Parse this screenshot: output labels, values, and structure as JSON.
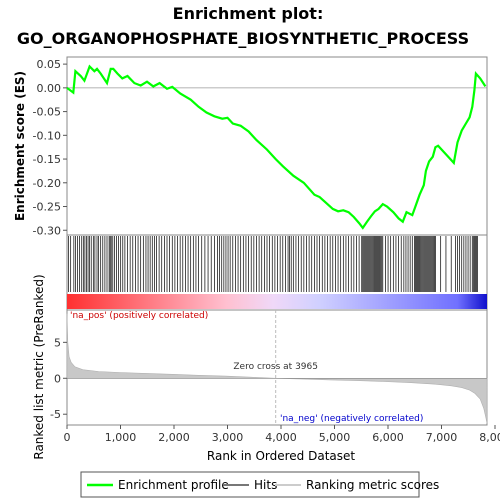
{
  "chart_data": {
    "type": "line",
    "title": "Enrichment plot:",
    "subtitle": "GO_ORGANOPHOSPHATE_BIOSYNTHETIC_PROCESS",
    "xlabel": "Rank in Ordered Dataset",
    "ylabel_top": "Enrichment score (ES)",
    "ylabel_bottom": "Ranked list metric (PreRanked)",
    "xlim": [
      0,
      8000
    ],
    "x_ticks": [
      "0",
      "1,000",
      "2,000",
      "3,000",
      "4,000",
      "5,000",
      "6,000",
      "7,000",
      "8,000"
    ],
    "x_tick_values": [
      0,
      1000,
      2000,
      3000,
      4000,
      5000,
      6000,
      7000,
      8000
    ],
    "es_ylim": [
      -0.31,
      0.065
    ],
    "es_ticks": [
      "0.05",
      "0.00",
      "-0.05",
      "-0.10",
      "-0.15",
      "-0.20",
      "-0.25",
      "-0.30"
    ],
    "es_tick_values": [
      0.05,
      0.0,
      -0.05,
      -0.1,
      -0.15,
      -0.2,
      -0.25,
      -0.3
    ],
    "metric_ylim": [
      -6.5,
      9.5
    ],
    "metric_ticks": [
      "5",
      "0",
      "-5"
    ],
    "metric_tick_values": [
      5,
      0,
      -5
    ],
    "enrichment_profile": {
      "name": "Enrichment profile",
      "color": "#00ff00",
      "points": [
        [
          0,
          0.0
        ],
        [
          120,
          -0.01
        ],
        [
          160,
          0.035
        ],
        [
          260,
          0.025
        ],
        [
          330,
          0.015
        ],
        [
          430,
          0.045
        ],
        [
          520,
          0.035
        ],
        [
          570,
          0.04
        ],
        [
          640,
          0.03
        ],
        [
          760,
          0.01
        ],
        [
          830,
          0.04
        ],
        [
          880,
          0.04
        ],
        [
          960,
          0.03
        ],
        [
          1050,
          0.02
        ],
        [
          1150,
          0.025
        ],
        [
          1280,
          0.01
        ],
        [
          1400,
          0.005
        ],
        [
          1520,
          0.013
        ],
        [
          1640,
          0.003
        ],
        [
          1760,
          0.01
        ],
        [
          1900,
          -0.002
        ],
        [
          2000,
          0.002
        ],
        [
          2150,
          -0.012
        ],
        [
          2350,
          -0.025
        ],
        [
          2500,
          -0.04
        ],
        [
          2650,
          -0.052
        ],
        [
          2800,
          -0.06
        ],
        [
          2950,
          -0.065
        ],
        [
          3050,
          -0.063
        ],
        [
          3150,
          -0.075
        ],
        [
          3300,
          -0.08
        ],
        [
          3450,
          -0.092
        ],
        [
          3600,
          -0.11
        ],
        [
          3800,
          -0.13
        ],
        [
          3965,
          -0.15
        ],
        [
          4100,
          -0.165
        ],
        [
          4300,
          -0.185
        ],
        [
          4500,
          -0.2
        ],
        [
          4700,
          -0.225
        ],
        [
          4800,
          -0.23
        ],
        [
          4900,
          -0.24
        ],
        [
          5050,
          -0.255
        ],
        [
          5150,
          -0.26
        ],
        [
          5250,
          -0.258
        ],
        [
          5350,
          -0.262
        ],
        [
          5450,
          -0.272
        ],
        [
          5550,
          -0.285
        ],
        [
          5620,
          -0.295
        ],
        [
          5700,
          -0.282
        ],
        [
          5780,
          -0.27
        ],
        [
          5850,
          -0.26
        ],
        [
          5920,
          -0.255
        ],
        [
          6000,
          -0.245
        ],
        [
          6080,
          -0.25
        ],
        [
          6200,
          -0.262
        ],
        [
          6300,
          -0.275
        ],
        [
          6380,
          -0.282
        ],
        [
          6450,
          -0.262
        ],
        [
          6560,
          -0.268
        ],
        [
          6620,
          -0.25
        ],
        [
          6700,
          -0.225
        ],
        [
          6780,
          -0.205
        ],
        [
          6820,
          -0.175
        ],
        [
          6880,
          -0.155
        ],
        [
          6950,
          -0.145
        ],
        [
          7000,
          -0.125
        ],
        [
          7050,
          -0.122
        ],
        [
          7200,
          -0.14
        ],
        [
          7350,
          -0.158
        ],
        [
          7420,
          -0.115
        ],
        [
          7500,
          -0.09
        ],
        [
          7580,
          -0.075
        ],
        [
          7650,
          -0.062
        ],
        [
          7700,
          -0.04
        ],
        [
          7740,
          -0.005
        ],
        [
          7770,
          0.03
        ],
        [
          7850,
          0.02
        ],
        [
          7950,
          0.003
        ]
      ]
    },
    "hits": [
      30,
      70,
      130,
      160,
      200,
      240,
      280,
      310,
      340,
      370,
      400,
      430,
      460,
      500,
      530,
      570,
      600,
      640,
      680,
      720,
      760,
      800,
      820,
      840,
      870,
      900,
      940,
      980,
      1020,
      1060,
      1100,
      1150,
      1200,
      1250,
      1300,
      1350,
      1400,
      1450,
      1500,
      1540,
      1580,
      1620,
      1660,
      1700,
      1750,
      1800,
      1850,
      1900,
      1950,
      2000,
      2050,
      2100,
      2150,
      2200,
      2250,
      2300,
      2350,
      2400,
      2450,
      2500,
      2560,
      2620,
      2680,
      2740,
      2800,
      2860,
      2900,
      2940,
      2980,
      3020,
      3060,
      3100,
      3150,
      3200,
      3250,
      3300,
      3350,
      3400,
      3450,
      3500,
      3550,
      3600,
      3650,
      3700,
      3750,
      3800,
      3850,
      3900,
      3950,
      4000,
      4050,
      4100,
      4150,
      4200,
      4230,
      4260,
      4300,
      4350,
      4400,
      4450,
      4500,
      4550,
      4600,
      4650,
      4700,
      4750,
      4800,
      4850,
      4900,
      4950,
      5000,
      5050,
      5100,
      5150,
      5200,
      5250,
      5300,
      5350,
      5400,
      5450,
      5500,
      5550,
      5600,
      5620,
      5640,
      5660,
      5680,
      5700,
      5720,
      5740,
      5760,
      5780,
      5800,
      5820,
      5840,
      5860,
      5880,
      5900,
      5920,
      5940,
      5960,
      5980,
      6000,
      6050,
      6100,
      6150,
      6200,
      6250,
      6300,
      6350,
      6400,
      6440,
      6480,
      6520,
      6560,
      6600,
      6620,
      6640,
      6660,
      6680,
      6700,
      6720,
      6740,
      6760,
      6780,
      6800,
      6820,
      6840,
      6860,
      6880,
      6900,
      6920,
      6940,
      6960,
      6980,
      7000,
      7100,
      7200,
      7300,
      7380,
      7420,
      7460,
      7500,
      7540,
      7580,
      7620,
      7660,
      7700,
      7720,
      7740,
      7760,
      7780,
      7800
    ],
    "ranking_metric": {
      "name": "Ranking metric scores",
      "points": [
        [
          0,
          9
        ],
        [
          15,
          5
        ],
        [
          40,
          3
        ],
        [
          80,
          2.2
        ],
        [
          150,
          1.6
        ],
        [
          300,
          1.2
        ],
        [
          600,
          0.95
        ],
        [
          1000,
          0.8
        ],
        [
          1500,
          0.68
        ],
        [
          2000,
          0.55
        ],
        [
          2500,
          0.42
        ],
        [
          3000,
          0.3
        ],
        [
          3500,
          0.15
        ],
        [
          3965,
          0.0
        ],
        [
          4500,
          -0.12
        ],
        [
          5000,
          -0.22
        ],
        [
          5500,
          -0.32
        ],
        [
          6000,
          -0.45
        ],
        [
          6500,
          -0.6
        ],
        [
          7000,
          -0.82
        ],
        [
          7300,
          -1.05
        ],
        [
          7500,
          -1.3
        ],
        [
          7650,
          -1.65
        ],
        [
          7750,
          -2.1
        ],
        [
          7850,
          -2.9
        ],
        [
          7920,
          -4.2
        ],
        [
          7960,
          -5.5
        ],
        [
          7980,
          -6.3
        ]
      ]
    },
    "zero_cross_label": "Zero cross at 3965",
    "zero_cross": 3965,
    "pos_label": "'na_pos' (positively correlated)",
    "neg_label": "'na_neg' (negatively correlated)",
    "pos_color": "#cc0000",
    "neg_color": "#0000cc",
    "legend": {
      "items": [
        {
          "label": "Enrichment profile",
          "color": "#00ff00"
        },
        {
          "label": "Hits",
          "color": "#777777"
        },
        {
          "label": "Ranking metric scores",
          "color": "#cccccc"
        }
      ]
    }
  }
}
